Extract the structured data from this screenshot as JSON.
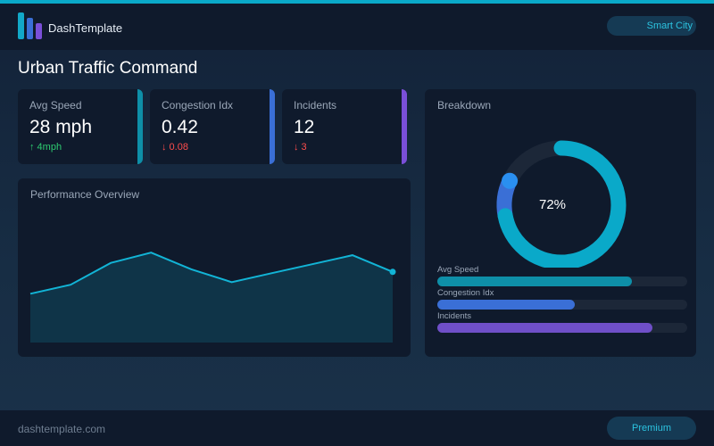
{
  "header": {
    "brand": "DashTemplate",
    "city_pill": "Smart City",
    "accent": "#0aa9c9"
  },
  "page": {
    "title": "Urban Traffic Command"
  },
  "kpis": [
    {
      "label": "Avg Speed",
      "value": "28 mph",
      "delta": "↑ 4mph",
      "trend": "up",
      "delta_color": "#2ecc71",
      "stripe_color": "#0e8fa8"
    },
    {
      "label": "Congestion Idx",
      "value": "0.42",
      "delta": "↓ 0.08",
      "trend": "down",
      "delta_color": "#ff4d4d",
      "stripe_color": "#3a6fd6"
    },
    {
      "label": "Incidents",
      "value": "12",
      "delta": "↓ 3",
      "trend": "down",
      "delta_color": "#ff4d4d",
      "stripe_color": "#7a4fd8"
    }
  ],
  "performance": {
    "title": "Performance Overview",
    "line_color": "#12b4d6",
    "fill_color": "#0f3448",
    "values": [
      38,
      45,
      62,
      70,
      57,
      47,
      54,
      61,
      68,
      55
    ]
  },
  "breakdown": {
    "title": "Breakdown",
    "donut": {
      "center_label": "72%",
      "primary_fraction": 0.72,
      "secondary_fraction": 0.1,
      "primary_color": "#0aa9c9",
      "secondary_color": "#3a6fd6",
      "marker_color": "#2a8ff0",
      "track_color": "#1c2738"
    },
    "bars": [
      {
        "label": "Avg Speed",
        "fraction": 0.78,
        "color": "#0e8fa8"
      },
      {
        "label": "Congestion Idx",
        "fraction": 0.55,
        "color": "#3a6fd6"
      },
      {
        "label": "Incidents",
        "fraction": 0.86,
        "color": "#6f4fc8"
      }
    ]
  },
  "footer": {
    "url": "dashtemplate.com",
    "premium_label": "Premium"
  }
}
